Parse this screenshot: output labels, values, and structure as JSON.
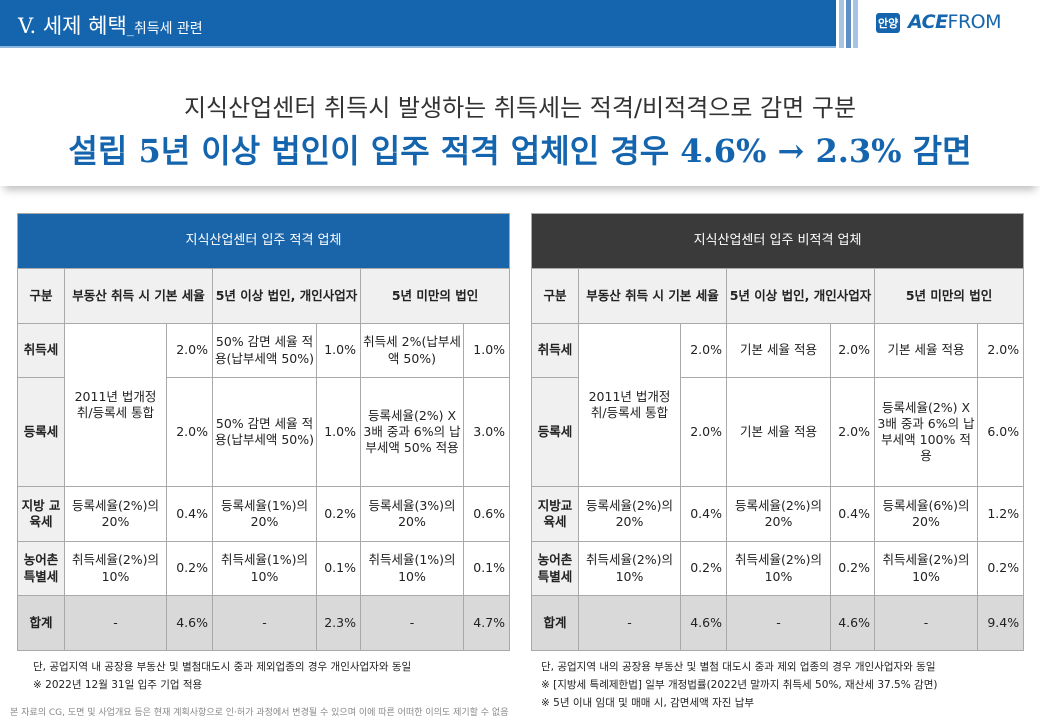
{
  "header": {
    "section": "V. 세제 혜택",
    "sub": "_취득세 관련"
  },
  "logo": {
    "badge": "안양",
    "brand_a": "ACE",
    "brand_b": "FROM"
  },
  "hero": {
    "line1": "지식산업센터 취득시 발생하는 취득세는 적격/비적격으로 감면 구분",
    "line2": "설립 5년 이상 법인이 입주 적격 업체인 경우 4.6% → 2.3% 감면"
  },
  "tables": [
    {
      "caption": "지식산업센터 입주 적격 업체",
      "headers": [
        "구분",
        "부동산 취득 시 기본 세율",
        "5년 이상 법인, 개인사업자",
        "5년 미만의 법인"
      ],
      "merged": "2011년 법개정 취/등록세 통합",
      "rows": [
        {
          "label": "취득세",
          "base": "2.0%",
          "c2": "50% 감면 세율 적용(납부세액 50%)",
          "p2": "1.0%",
          "c3": "취득세 2%(납부세액 50%)",
          "p3": "1.0%"
        },
        {
          "label": "등록세",
          "base": "2.0%",
          "c2": "50% 감면 세율 적용(납부세액 50%)",
          "p2": "1.0%",
          "c3": "등록세율(2%) X 3배 중과 6%의 납부세액 50% 적용",
          "p3": "3.0%"
        },
        {
          "label": "지방 교육세",
          "c1": "등록세율(2%)의 20%",
          "base": "0.4%",
          "c2": "등록세율(1%)의 20%",
          "p2": "0.2%",
          "c3": "등록세율(3%)의 20%",
          "p3": "0.6%"
        },
        {
          "label": "농어촌 특별세",
          "c1": "취득세율(2%)의 10%",
          "base": "0.2%",
          "c2": "취득세율(1%)의 10%",
          "p2": "0.1%",
          "c3": "취득세율(1%)의 10%",
          "p3": "0.1%"
        },
        {
          "label": "합계",
          "c1": "-",
          "base": "4.6%",
          "c2": "-",
          "p2": "2.3%",
          "c3": "-",
          "p3": "4.7%"
        }
      ]
    },
    {
      "caption": "지식산업센터 입주 비적격 업체",
      "headers": [
        "구분",
        "부동산 취득 시 기본 세율",
        "5년 이상 법인, 개인사업자",
        "5년 미만의 법인"
      ],
      "merged": "2011년 법개정 취/등록세 통합",
      "rows": [
        {
          "label": "취득세",
          "base": "2.0%",
          "c2": "기본 세율 적용",
          "p2": "2.0%",
          "c3": "기본 세율 적용",
          "p3": "2.0%"
        },
        {
          "label": "등록세",
          "base": "2.0%",
          "c2": "기본 세율 적용",
          "p2": "2.0%",
          "c3": "등록세율(2%) X 3배 중과 6%의 납부세액 100% 적용",
          "p3": "6.0%"
        },
        {
          "label": "지방교육세",
          "c1": "등록세율(2%)의 20%",
          "base": "0.4%",
          "c2": "등록세율(2%)의 20%",
          "p2": "0.4%",
          "c3": "등록세율(6%)의 20%",
          "p3": "1.2%"
        },
        {
          "label": "농어촌 특별세",
          "c1": "취득세율(2%)의 10%",
          "base": "0.2%",
          "c2": "취득세율(2%)의 10%",
          "p2": "0.2%",
          "c3": "취득세율(2%)의 10%",
          "p3": "0.2%"
        },
        {
          "label": "합계",
          "c1": "-",
          "base": "4.6%",
          "c2": "-",
          "p2": "4.6%",
          "c3": "-",
          "p3": "9.4%"
        }
      ]
    }
  ],
  "notes_left": [
    "단, 공업지역 내 공장용 부동산 및 별첨대도시 중과 제외업종의 경우 개인사업자와 동일",
    "※ 2022년 12월 31일 입주 기업 적용"
  ],
  "notes_right": [
    "단, 공업지역 내의 공장용 부동산 및 별첨 대도시 중과 제외 업종의 경우 개인사업자와 동일",
    "※ [지방세 특례제한법] 일부 개정법률(2022년 말까지 취득세 50%, 재산세 37.5% 감면)",
    "※ 5년 이내 임대 및 매매 시, 감면세액 자진 납부"
  ],
  "disclaimer": "본 자료의 CG, 도면 및 사업개요 등은 현재 계획사항으로 인·허가 과정에서 변경될 수 있으며 이에 따른 어떠한 이의도 제기할 수 없음"
}
